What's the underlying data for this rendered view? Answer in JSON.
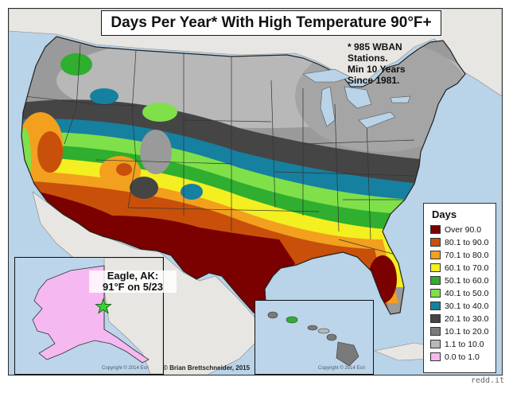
{
  "title": "Days Per Year* With High Temperature 90°F+",
  "note": {
    "lines": [
      "* 985 WBAN",
      "Stations.",
      "Min 10 Years",
      "Since 1981."
    ]
  },
  "legend": {
    "title": "Days",
    "items": [
      {
        "label": "Over 90.0",
        "color": "#7b0000"
      },
      {
        "label": "80.1 to 90.0",
        "color": "#c8500a"
      },
      {
        "label": "70.1 to 80.0",
        "color": "#f2a01e"
      },
      {
        "label": "60.1 to 70.0",
        "color": "#f3ef20"
      },
      {
        "label": "50.1 to 60.0",
        "color": "#2fae2f"
      },
      {
        "label": "40.1 to 50.0",
        "color": "#7fe04a"
      },
      {
        "label": "30.1 to 40.0",
        "color": "#1680a0"
      },
      {
        "label": "20.1 to 30.0",
        "color": "#454545"
      },
      {
        "label": "10.1 to 20.0",
        "color": "#7a7a7a"
      },
      {
        "label": "1.1 to 10.0",
        "color": "#b8b8b8"
      },
      {
        "label": "0.0 to 1.0",
        "color": "#f6b8f0"
      }
    ]
  },
  "alaska": {
    "label_line1": "Eagle, AK:",
    "label_line2": "91°F on 5/23",
    "copyright": "Copyright © 2014 Esri"
  },
  "hawaii": {
    "copyright": "Copyright © 2014 Esri"
  },
  "credit": "© Brian Brettschneider, 2015",
  "watermark": "redd.it",
  "colors": {
    "water": "#b9d3e8",
    "neighbor_land": "#e8e6e2",
    "alaska_land": "#f6b8f0"
  }
}
